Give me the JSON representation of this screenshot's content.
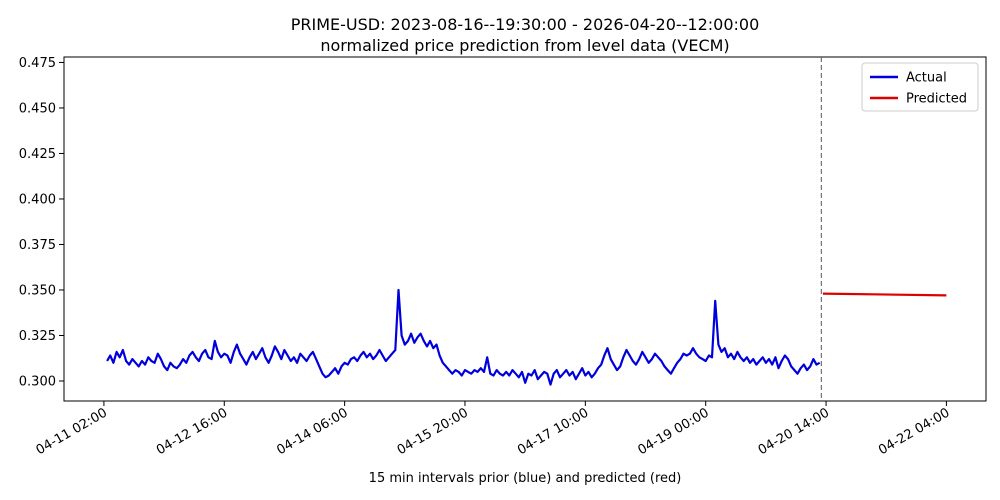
{
  "chart_data": {
    "type": "line",
    "title": "PRIME-USD: 2023-08-16--19:30:00 - 2026-04-20--12:00:00",
    "subtitle": "normalized price prediction from level data (VECM)",
    "xlabel": "15 min intervals prior (blue) and predicted (red)",
    "ylabel": "",
    "x_ticks": [
      "04-11 02:00",
      "04-12 16:00",
      "04-14 06:00",
      "04-15 20:00",
      "04-17 10:00",
      "04-19 00:00",
      "04-20 14:00",
      "04-22 04:00"
    ],
    "x_tick_hours": [
      0,
      38,
      76,
      114,
      152,
      190,
      228,
      266
    ],
    "xlim_hours": [
      -12.6,
      278.5
    ],
    "y_ticks": [
      "0.300",
      "0.325",
      "0.350",
      "0.375",
      "0.400",
      "0.425",
      "0.450",
      "0.475"
    ],
    "y_tick_values": [
      0.3,
      0.325,
      0.35,
      0.375,
      0.4,
      0.425,
      0.45,
      0.475
    ],
    "ylim": [
      0.289,
      0.478
    ],
    "grid": false,
    "legend_position": "top-right",
    "divider_hour": 226.5,
    "series": [
      {
        "name": "Actual",
        "color": "#0000dd",
        "points": [
          [
            1,
            0.311
          ],
          [
            2,
            0.314
          ],
          [
            3,
            0.31
          ],
          [
            4,
            0.316
          ],
          [
            5,
            0.313
          ],
          [
            6,
            0.317
          ],
          [
            7,
            0.311
          ],
          [
            8,
            0.309
          ],
          [
            9,
            0.312
          ],
          [
            10,
            0.31
          ],
          [
            11,
            0.308
          ],
          [
            12,
            0.311
          ],
          [
            13,
            0.309
          ],
          [
            14,
            0.313
          ],
          [
            15,
            0.311
          ],
          [
            16,
            0.31
          ],
          [
            17,
            0.315
          ],
          [
            18,
            0.312
          ],
          [
            19,
            0.308
          ],
          [
            20,
            0.306
          ],
          [
            21,
            0.31
          ],
          [
            22,
            0.308
          ],
          [
            23,
            0.307
          ],
          [
            24,
            0.309
          ],
          [
            25,
            0.312
          ],
          [
            26,
            0.31
          ],
          [
            27,
            0.314
          ],
          [
            28,
            0.316
          ],
          [
            29,
            0.313
          ],
          [
            30,
            0.311
          ],
          [
            31,
            0.315
          ],
          [
            32,
            0.317
          ],
          [
            33,
            0.313
          ],
          [
            34,
            0.312
          ],
          [
            35,
            0.322
          ],
          [
            36,
            0.316
          ],
          [
            37,
            0.313
          ],
          [
            38,
            0.315
          ],
          [
            39,
            0.314
          ],
          [
            40,
            0.31
          ],
          [
            41,
            0.316
          ],
          [
            42,
            0.32
          ],
          [
            43,
            0.315
          ],
          [
            44,
            0.312
          ],
          [
            45,
            0.309
          ],
          [
            46,
            0.313
          ],
          [
            47,
            0.316
          ],
          [
            48,
            0.312
          ],
          [
            49,
            0.315
          ],
          [
            50,
            0.318
          ],
          [
            51,
            0.313
          ],
          [
            52,
            0.31
          ],
          [
            53,
            0.314
          ],
          [
            54,
            0.319
          ],
          [
            55,
            0.316
          ],
          [
            56,
            0.312
          ],
          [
            57,
            0.317
          ],
          [
            58,
            0.314
          ],
          [
            59,
            0.311
          ],
          [
            60,
            0.313
          ],
          [
            61,
            0.31
          ],
          [
            62,
            0.315
          ],
          [
            63,
            0.313
          ],
          [
            64,
            0.311
          ],
          [
            65,
            0.314
          ],
          [
            66,
            0.316
          ],
          [
            67,
            0.312
          ],
          [
            68,
            0.308
          ],
          [
            69,
            0.304
          ],
          [
            70,
            0.302
          ],
          [
            71,
            0.303
          ],
          [
            72,
            0.305
          ],
          [
            73,
            0.307
          ],
          [
            74,
            0.304
          ],
          [
            75,
            0.308
          ],
          [
            76,
            0.31
          ],
          [
            77,
            0.309
          ],
          [
            78,
            0.312
          ],
          [
            79,
            0.313
          ],
          [
            80,
            0.311
          ],
          [
            81,
            0.314
          ],
          [
            82,
            0.316
          ],
          [
            83,
            0.313
          ],
          [
            84,
            0.315
          ],
          [
            85,
            0.312
          ],
          [
            86,
            0.314
          ],
          [
            87,
            0.317
          ],
          [
            88,
            0.314
          ],
          [
            89,
            0.311
          ],
          [
            90,
            0.313
          ],
          [
            91,
            0.315
          ],
          [
            92,
            0.317
          ],
          [
            93,
            0.35
          ],
          [
            94,
            0.325
          ],
          [
            95,
            0.32
          ],
          [
            96,
            0.322
          ],
          [
            97,
            0.326
          ],
          [
            98,
            0.321
          ],
          [
            99,
            0.324
          ],
          [
            100,
            0.326
          ],
          [
            101,
            0.322
          ],
          [
            102,
            0.319
          ],
          [
            103,
            0.322
          ],
          [
            104,
            0.318
          ],
          [
            105,
            0.32
          ],
          [
            106,
            0.314
          ],
          [
            107,
            0.31
          ],
          [
            108,
            0.308
          ],
          [
            109,
            0.306
          ],
          [
            110,
            0.304
          ],
          [
            111,
            0.306
          ],
          [
            112,
            0.305
          ],
          [
            113,
            0.303
          ],
          [
            114,
            0.306
          ],
          [
            115,
            0.305
          ],
          [
            116,
            0.304
          ],
          [
            117,
            0.306
          ],
          [
            118,
            0.305
          ],
          [
            119,
            0.307
          ],
          [
            120,
            0.305
          ],
          [
            121,
            0.313
          ],
          [
            122,
            0.304
          ],
          [
            123,
            0.303
          ],
          [
            124,
            0.306
          ],
          [
            125,
            0.304
          ],
          [
            126,
            0.303
          ],
          [
            127,
            0.305
          ],
          [
            128,
            0.303
          ],
          [
            129,
            0.306
          ],
          [
            130,
            0.304
          ],
          [
            131,
            0.302
          ],
          [
            132,
            0.305
          ],
          [
            133,
            0.299
          ],
          [
            134,
            0.304
          ],
          [
            135,
            0.303
          ],
          [
            136,
            0.306
          ],
          [
            137,
            0.301
          ],
          [
            138,
            0.303
          ],
          [
            139,
            0.305
          ],
          [
            140,
            0.304
          ],
          [
            141,
            0.298
          ],
          [
            142,
            0.304
          ],
          [
            143,
            0.306
          ],
          [
            144,
            0.302
          ],
          [
            145,
            0.304
          ],
          [
            146,
            0.306
          ],
          [
            147,
            0.303
          ],
          [
            148,
            0.305
          ],
          [
            149,
            0.301
          ],
          [
            150,
            0.304
          ],
          [
            151,
            0.307
          ],
          [
            152,
            0.303
          ],
          [
            153,
            0.305
          ],
          [
            154,
            0.302
          ],
          [
            155,
            0.304
          ],
          [
            156,
            0.307
          ],
          [
            157,
            0.309
          ],
          [
            158,
            0.314
          ],
          [
            159,
            0.318
          ],
          [
            160,
            0.312
          ],
          [
            161,
            0.309
          ],
          [
            162,
            0.306
          ],
          [
            163,
            0.308
          ],
          [
            164,
            0.313
          ],
          [
            165,
            0.317
          ],
          [
            166,
            0.314
          ],
          [
            167,
            0.311
          ],
          [
            168,
            0.309
          ],
          [
            169,
            0.312
          ],
          [
            170,
            0.316
          ],
          [
            171,
            0.313
          ],
          [
            172,
            0.31
          ],
          [
            173,
            0.312
          ],
          [
            174,
            0.315
          ],
          [
            175,
            0.313
          ],
          [
            176,
            0.311
          ],
          [
            177,
            0.308
          ],
          [
            178,
            0.306
          ],
          [
            179,
            0.304
          ],
          [
            180,
            0.307
          ],
          [
            181,
            0.31
          ],
          [
            182,
            0.312
          ],
          [
            183,
            0.315
          ],
          [
            184,
            0.314
          ],
          [
            185,
            0.315
          ],
          [
            186,
            0.318
          ],
          [
            187,
            0.315
          ],
          [
            188,
            0.313
          ],
          [
            189,
            0.312
          ],
          [
            190,
            0.311
          ],
          [
            191,
            0.314
          ],
          [
            192,
            0.313
          ],
          [
            193,
            0.344
          ],
          [
            194,
            0.32
          ],
          [
            195,
            0.316
          ],
          [
            196,
            0.318
          ],
          [
            197,
            0.313
          ],
          [
            198,
            0.315
          ],
          [
            199,
            0.312
          ],
          [
            200,
            0.316
          ],
          [
            201,
            0.313
          ],
          [
            202,
            0.311
          ],
          [
            203,
            0.313
          ],
          [
            204,
            0.31
          ],
          [
            205,
            0.312
          ],
          [
            206,
            0.309
          ],
          [
            207,
            0.311
          ],
          [
            208,
            0.313
          ],
          [
            209,
            0.31
          ],
          [
            210,
            0.312
          ],
          [
            211,
            0.309
          ],
          [
            212,
            0.313
          ],
          [
            213,
            0.307
          ],
          [
            214,
            0.311
          ],
          [
            215,
            0.314
          ],
          [
            216,
            0.312
          ],
          [
            217,
            0.308
          ],
          [
            218,
            0.306
          ],
          [
            219,
            0.304
          ],
          [
            220,
            0.307
          ],
          [
            221,
            0.309
          ],
          [
            222,
            0.306
          ],
          [
            223,
            0.308
          ],
          [
            224,
            0.312
          ],
          [
            225,
            0.309
          ],
          [
            226,
            0.31
          ]
        ]
      },
      {
        "name": "Predicted",
        "color": "#dd0000",
        "points": [
          [
            227,
            0.348
          ],
          [
            266,
            0.347
          ]
        ]
      }
    ]
  }
}
